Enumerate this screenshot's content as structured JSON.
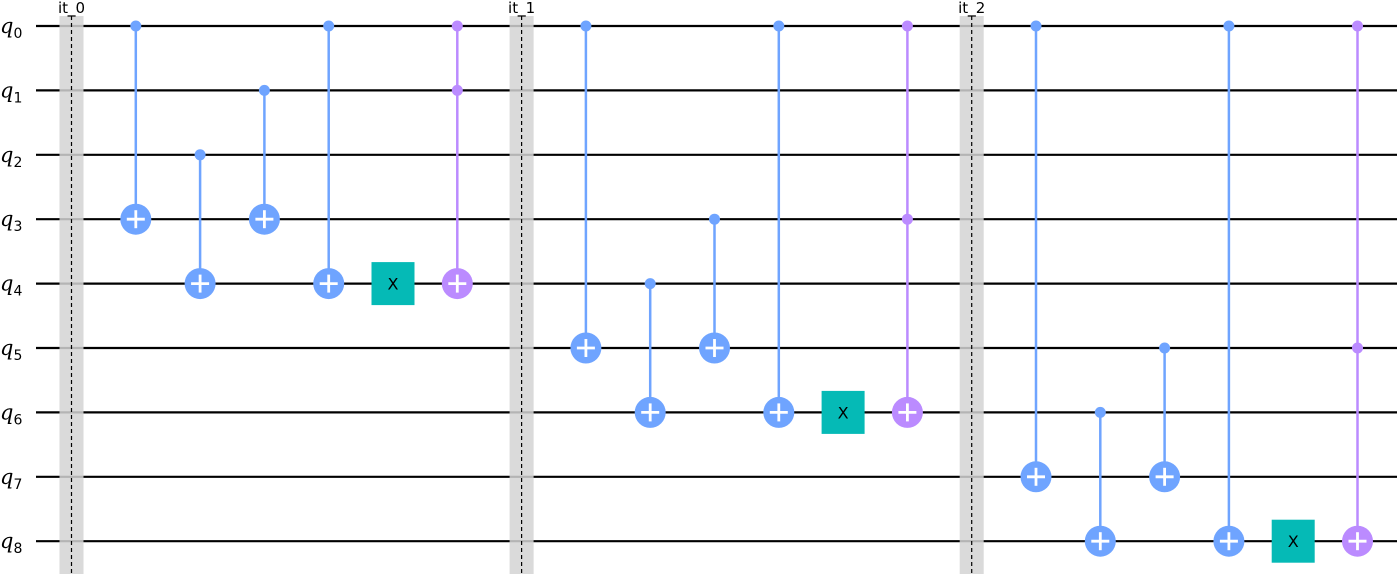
{
  "colors": {
    "cx": "#6fa4ff",
    "ccx": "#bb8bff",
    "x": "#05bab6",
    "barrier": "#d3d3d3",
    "wire": "#000000"
  },
  "qubits": [
    {
      "name": "q",
      "index": "0"
    },
    {
      "name": "q",
      "index": "1"
    },
    {
      "name": "q",
      "index": "2"
    },
    {
      "name": "q",
      "index": "3"
    },
    {
      "name": "q",
      "index": "4"
    },
    {
      "name": "q",
      "index": "5"
    },
    {
      "name": "q",
      "index": "6"
    },
    {
      "name": "q",
      "index": "7"
    },
    {
      "name": "q",
      "index": "8"
    }
  ],
  "barriers": [
    {
      "label": "it_0",
      "column": 0
    },
    {
      "label": "it_1",
      "column": 7
    },
    {
      "label": "it_2",
      "column": 14
    }
  ],
  "gates": [
    {
      "type": "cx",
      "controls": [
        0
      ],
      "target": 3,
      "column": 1
    },
    {
      "type": "cx",
      "controls": [
        2
      ],
      "target": 4,
      "column": 2
    },
    {
      "type": "cx",
      "controls": [
        1
      ],
      "target": 3,
      "column": 3
    },
    {
      "type": "cx",
      "controls": [
        0
      ],
      "target": 4,
      "column": 4
    },
    {
      "type": "x",
      "label": "X",
      "target": 4,
      "column": 5
    },
    {
      "type": "ccx",
      "controls": [
        0,
        1
      ],
      "target": 4,
      "column": 6
    },
    {
      "type": "cx",
      "controls": [
        0
      ],
      "target": 5,
      "column": 8
    },
    {
      "type": "cx",
      "controls": [
        4
      ],
      "target": 6,
      "column": 9
    },
    {
      "type": "cx",
      "controls": [
        3
      ],
      "target": 5,
      "column": 10
    },
    {
      "type": "cx",
      "controls": [
        0
      ],
      "target": 6,
      "column": 11
    },
    {
      "type": "x",
      "label": "X",
      "target": 6,
      "column": 12
    },
    {
      "type": "ccx",
      "controls": [
        0,
        3
      ],
      "target": 6,
      "column": 13
    },
    {
      "type": "cx",
      "controls": [
        0
      ],
      "target": 7,
      "column": 15
    },
    {
      "type": "cx",
      "controls": [
        6
      ],
      "target": 8,
      "column": 16
    },
    {
      "type": "cx",
      "controls": [
        5
      ],
      "target": 7,
      "column": 17
    },
    {
      "type": "cx",
      "controls": [
        0
      ],
      "target": 8,
      "column": 18
    },
    {
      "type": "x",
      "label": "X",
      "target": 8,
      "column": 19
    },
    {
      "type": "ccx",
      "controls": [
        0,
        5
      ],
      "target": 8,
      "column": 20
    }
  ]
}
